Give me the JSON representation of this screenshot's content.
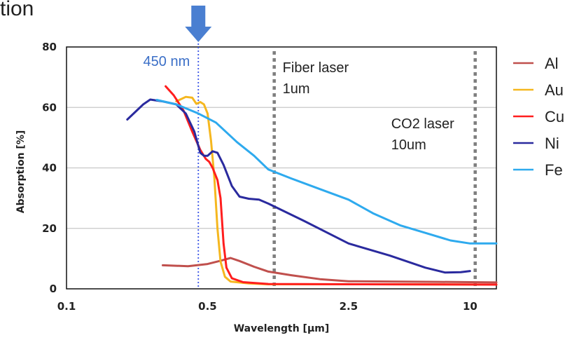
{
  "top_fragment": "tion",
  "chart_data": {
    "type": "line",
    "xlabel": "Wavelength [µm]",
    "ylabel": "Absorption  [%]",
    "xscale": "log",
    "xlim": [
      0.1,
      13.5
    ],
    "ylim": [
      0,
      80
    ],
    "xticks": [
      {
        "value": 0.1,
        "label": "0.1"
      },
      {
        "value": 0.5,
        "label": "0.5"
      },
      {
        "value": 2.5,
        "label": "2.5"
      },
      {
        "value": 10,
        "label": "10"
      }
    ],
    "yticks": [
      {
        "value": 0,
        "label": "0"
      },
      {
        "value": 20,
        "label": "20"
      },
      {
        "value": 40,
        "label": "40"
      },
      {
        "value": 60,
        "label": "60"
      },
      {
        "value": 80,
        "label": "80"
      }
    ],
    "grid": true,
    "legend_position": "right",
    "annotations": [
      {
        "name": "marker-450nm",
        "x": 0.45,
        "label": "450 nm",
        "style": "dotted",
        "color": "#3b55e6",
        "arrow": true
      },
      {
        "name": "fiber-laser",
        "x": 1.07,
        "label": [
          "Fiber laser",
          "1um"
        ],
        "style": "dotted",
        "color": "#7f7f7f"
      },
      {
        "name": "co2-laser",
        "x": 10.6,
        "label": [
          "CO2 laser",
          "10um"
        ],
        "style": "dotted",
        "color": "#7f7f7f"
      }
    ],
    "series": [
      {
        "name": "Al",
        "color": "#c0504d",
        "points": [
          [
            0.3,
            7.8
          ],
          [
            0.4,
            7.5
          ],
          [
            0.5,
            8.2
          ],
          [
            0.58,
            9.3
          ],
          [
            0.65,
            10.2
          ],
          [
            0.72,
            9.2
          ],
          [
            0.85,
            7.3
          ],
          [
            1.0,
            5.7
          ],
          [
            1.3,
            4.5
          ],
          [
            1.8,
            3.2
          ],
          [
            2.5,
            2.5
          ],
          [
            4,
            2.4
          ],
          [
            7,
            2.3
          ],
          [
            13.5,
            2.1
          ]
        ]
      },
      {
        "name": "Au",
        "color": "#f5b71f",
        "points": [
          [
            0.35,
            62
          ],
          [
            0.39,
            63.5
          ],
          [
            0.42,
            63.2
          ],
          [
            0.44,
            61.2
          ],
          [
            0.46,
            61.8
          ],
          [
            0.48,
            61
          ],
          [
            0.5,
            58
          ],
          [
            0.52,
            49
          ],
          [
            0.54,
            37
          ],
          [
            0.56,
            20
          ],
          [
            0.58,
            9
          ],
          [
            0.61,
            4
          ],
          [
            0.65,
            2.4
          ],
          [
            0.8,
            1.8
          ],
          [
            1.0,
            1.5
          ],
          [
            3,
            1.5
          ],
          [
            13.5,
            1.4
          ]
        ]
      },
      {
        "name": "Cu",
        "color": "#ff1e1e",
        "points": [
          [
            0.31,
            67
          ],
          [
            0.34,
            64
          ],
          [
            0.38,
            59
          ],
          [
            0.42,
            52
          ],
          [
            0.46,
            46
          ],
          [
            0.49,
            43
          ],
          [
            0.51,
            42
          ],
          [
            0.53,
            40
          ],
          [
            0.56,
            36
          ],
          [
            0.58,
            30
          ],
          [
            0.6,
            15
          ],
          [
            0.62,
            7
          ],
          [
            0.66,
            3.5
          ],
          [
            0.75,
            2.2
          ],
          [
            1.0,
            1.6
          ],
          [
            3,
            1.5
          ],
          [
            13.5,
            1.4
          ]
        ]
      },
      {
        "name": "Ni",
        "color": "#2a2a9e",
        "points": [
          [
            0.2,
            56
          ],
          [
            0.24,
            61
          ],
          [
            0.26,
            62.6
          ],
          [
            0.3,
            62
          ],
          [
            0.35,
            61
          ],
          [
            0.39,
            58
          ],
          [
            0.43,
            52
          ],
          [
            0.46,
            45
          ],
          [
            0.48,
            44
          ],
          [
            0.5,
            44
          ],
          [
            0.53,
            45.5
          ],
          [
            0.56,
            45
          ],
          [
            0.6,
            41
          ],
          [
            0.66,
            34
          ],
          [
            0.72,
            30.5
          ],
          [
            0.8,
            29.8
          ],
          [
            0.9,
            29.5
          ],
          [
            1.0,
            28.2
          ],
          [
            1.5,
            22.5
          ],
          [
            2.5,
            15
          ],
          [
            4,
            11
          ],
          [
            6,
            7
          ],
          [
            7.5,
            5.4
          ],
          [
            9,
            5.5
          ],
          [
            10,
            5.9
          ]
        ]
      },
      {
        "name": "Fe",
        "color": "#2eaaee",
        "points": [
          [
            0.28,
            62.5
          ],
          [
            0.35,
            61
          ],
          [
            0.45,
            58
          ],
          [
            0.55,
            55
          ],
          [
            0.7,
            48.5
          ],
          [
            0.85,
            44
          ],
          [
            1.0,
            39.5
          ],
          [
            1.3,
            36.5
          ],
          [
            1.8,
            33
          ],
          [
            2.5,
            29.5
          ],
          [
            3.3,
            25
          ],
          [
            4.5,
            21
          ],
          [
            6,
            18.5
          ],
          [
            8,
            16
          ],
          [
            10,
            15
          ],
          [
            13.5,
            15
          ]
        ]
      }
    ]
  }
}
